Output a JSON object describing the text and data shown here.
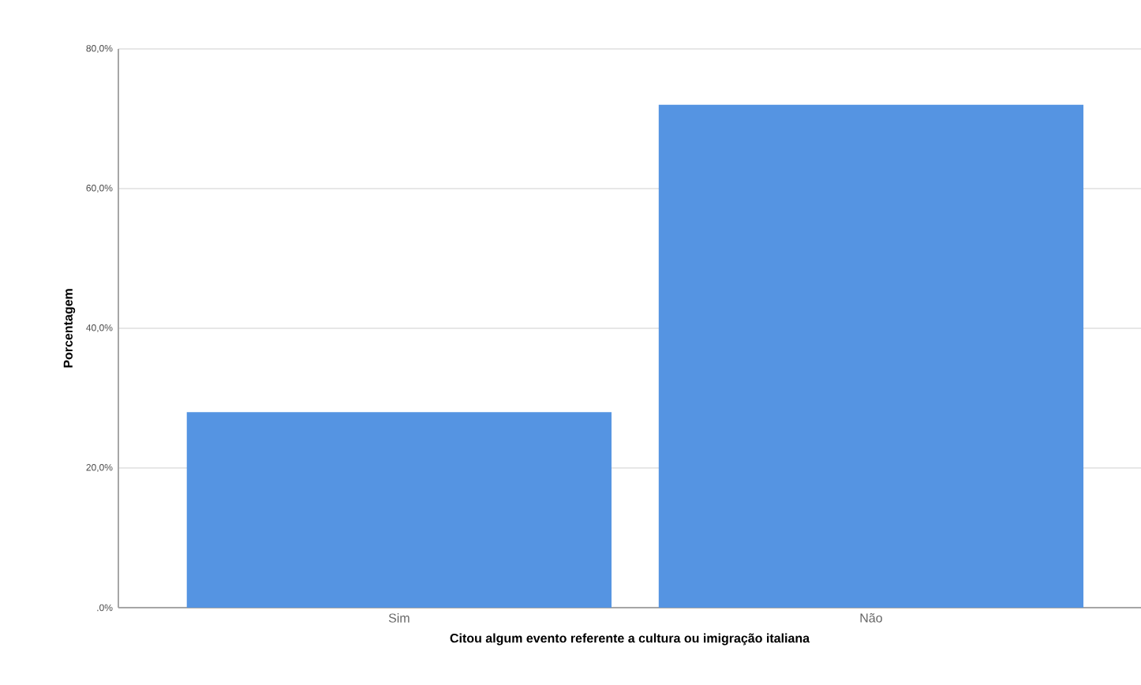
{
  "chart_data": {
    "type": "bar",
    "xlabel": "Citou algum evento referente a  cultura ou imigração italiana",
    "ylabel": "Porcentagem",
    "categories": [
      "Sim",
      "Não"
    ],
    "values": [
      28.0,
      72.0
    ],
    "color": "#5594e2",
    "ylim": [
      0,
      80
    ],
    "yticks": [
      {
        "value": 0,
        "label": ".0%"
      },
      {
        "value": 20,
        "label": "20,0%"
      },
      {
        "value": 40,
        "label": "40,0%"
      },
      {
        "value": 60,
        "label": "60,0%"
      },
      {
        "value": 80,
        "label": "80,0%"
      }
    ],
    "grid": "y"
  }
}
